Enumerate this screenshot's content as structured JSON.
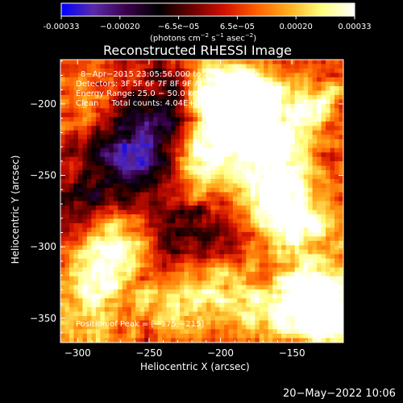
{
  "colorbar": {
    "ticks": [
      "-0.00033",
      "−0.00020",
      "−6.5e−05",
      "6.5e−05",
      "0.00020",
      "0.00033"
    ],
    "unit_prefix": "(photons cm",
    "unit_exp1": "−2",
    "unit_mid": " s",
    "unit_exp2": "−1",
    "unit_mid2": " asec",
    "unit_exp3": "−2",
    "unit_suffix": ")",
    "colors": [
      "#0000ff",
      "#5a2aa8",
      "#3a004a",
      "#000000",
      "#6a0000",
      "#d01000",
      "#ff6000",
      "#ffb020",
      "#ffff80",
      "#ffffff"
    ]
  },
  "title": "Reconstructed RHESSI Image",
  "annotations": {
    "line1": "8−Apr−2015 23:05:56.000 to 23:08:48.000",
    "line2": "Detectors: 3F 5F 6F 7F 8F 9F Att 0",
    "line3": "Energy Range: 25.0 − 50.0 keV",
    "line4": "Clean     Total counts: 4.04E+03",
    "peak": "Position of Peak = [−175,−215]"
  },
  "timestamp": "20−May−2022 10:06",
  "chart_data": {
    "type": "heatmap",
    "title": "Reconstructed RHESSI Image",
    "xlabel": "Heliocentric X (arcsec)",
    "ylabel": "Heliocentric Y (arcsec)",
    "xlim": [
      -312,
      -114
    ],
    "ylim": [
      -367,
      -169
    ],
    "xticks": [
      -300,
      -250,
      -200,
      -150
    ],
    "xtick_labels": [
      "−300",
      "−250",
      "−200",
      "−150"
    ],
    "yticks": [
      -200,
      -250,
      -300,
      -350
    ],
    "ytick_labels": [
      "−200",
      "−250",
      "−300",
      "−350"
    ],
    "colorbar_range": [
      -0.00033,
      0.00033
    ],
    "peak_position": [
      -175,
      -215
    ],
    "grid": false,
    "colormap": [
      "#0000ff",
      "#5a2aa8",
      "#3a004a",
      "#000000",
      "#6a0000",
      "#d01000",
      "#ff6000",
      "#ffb020",
      "#ffff80",
      "#ffffff"
    ],
    "features": [
      {
        "x": -180,
        "y": -200,
        "level": 1.0
      },
      {
        "x": -200,
        "y": -195,
        "level": 0.95
      },
      {
        "x": -165,
        "y": -230,
        "level": 0.9
      },
      {
        "x": -210,
        "y": -240,
        "level": 0.85
      },
      {
        "x": -160,
        "y": -270,
        "level": 0.75
      },
      {
        "x": -270,
        "y": -300,
        "level": 0.9
      },
      {
        "x": -290,
        "y": -320,
        "level": 0.6
      },
      {
        "x": -140,
        "y": -330,
        "level": 0.85
      },
      {
        "x": -125,
        "y": -350,
        "level": 0.95
      },
      {
        "x": -200,
        "y": -330,
        "level": 0.6
      },
      {
        "x": -235,
        "y": -345,
        "level": 0.55
      },
      {
        "x": -130,
        "y": -200,
        "level": 0.6
      },
      {
        "x": -140,
        "y": -280,
        "level": 0.7
      },
      {
        "x": -250,
        "y": -230,
        "level": -0.55
      },
      {
        "x": -270,
        "y": -240,
        "level": -0.5
      },
      {
        "x": -240,
        "y": -200,
        "level": -0.45
      },
      {
        "x": -250,
        "y": -300,
        "level": -0.35
      },
      {
        "x": -215,
        "y": -290,
        "level": -0.35
      },
      {
        "x": -300,
        "y": -270,
        "level": -0.4
      },
      {
        "x": -300,
        "y": -200,
        "level": 0.4
      },
      {
        "x": -290,
        "y": -355,
        "level": 0.5
      },
      {
        "x": -170,
        "y": -355,
        "level": 0.45
      }
    ]
  }
}
